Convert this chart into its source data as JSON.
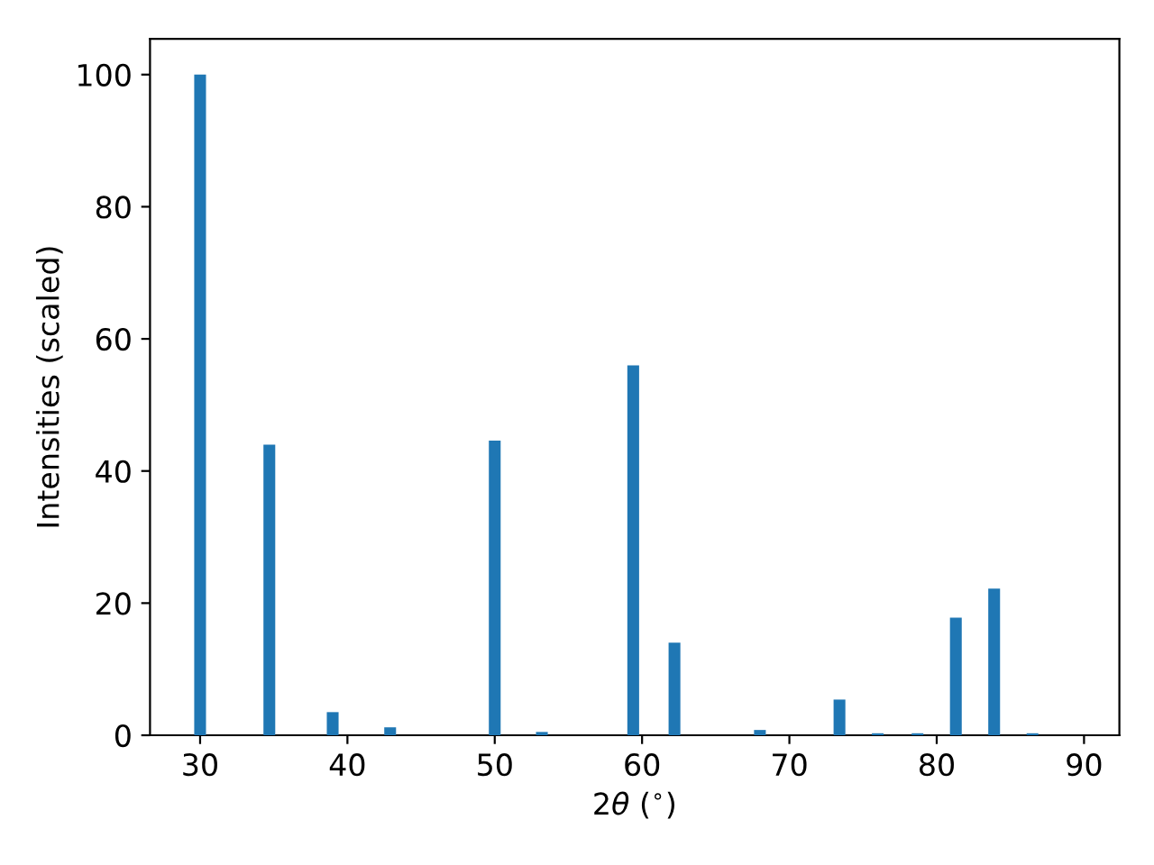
{
  "chart_data": {
    "type": "bar",
    "xlabel": "2θ ($^{∘}$)",
    "ylabel": "Intensities (scaled)",
    "x": [
      30.0,
      34.7,
      39.0,
      42.9,
      50.0,
      53.2,
      59.4,
      62.2,
      68.0,
      73.4,
      76.0,
      78.7,
      81.3,
      83.9,
      86.5
    ],
    "values": [
      100,
      44,
      3.5,
      1.2,
      44.6,
      0.5,
      56,
      14,
      0.8,
      5.4,
      0.3,
      0.3,
      17.8,
      22.2,
      0.3
    ],
    "color": "#1f77b4",
    "xlim": [
      26.6,
      92.4
    ],
    "ylim": [
      0,
      105.4
    ],
    "xticks": [
      30,
      40,
      50,
      60,
      70,
      80,
      90
    ],
    "yticks": [
      0,
      20,
      40,
      60,
      80,
      100
    ],
    "grid": false,
    "legend": false
  }
}
